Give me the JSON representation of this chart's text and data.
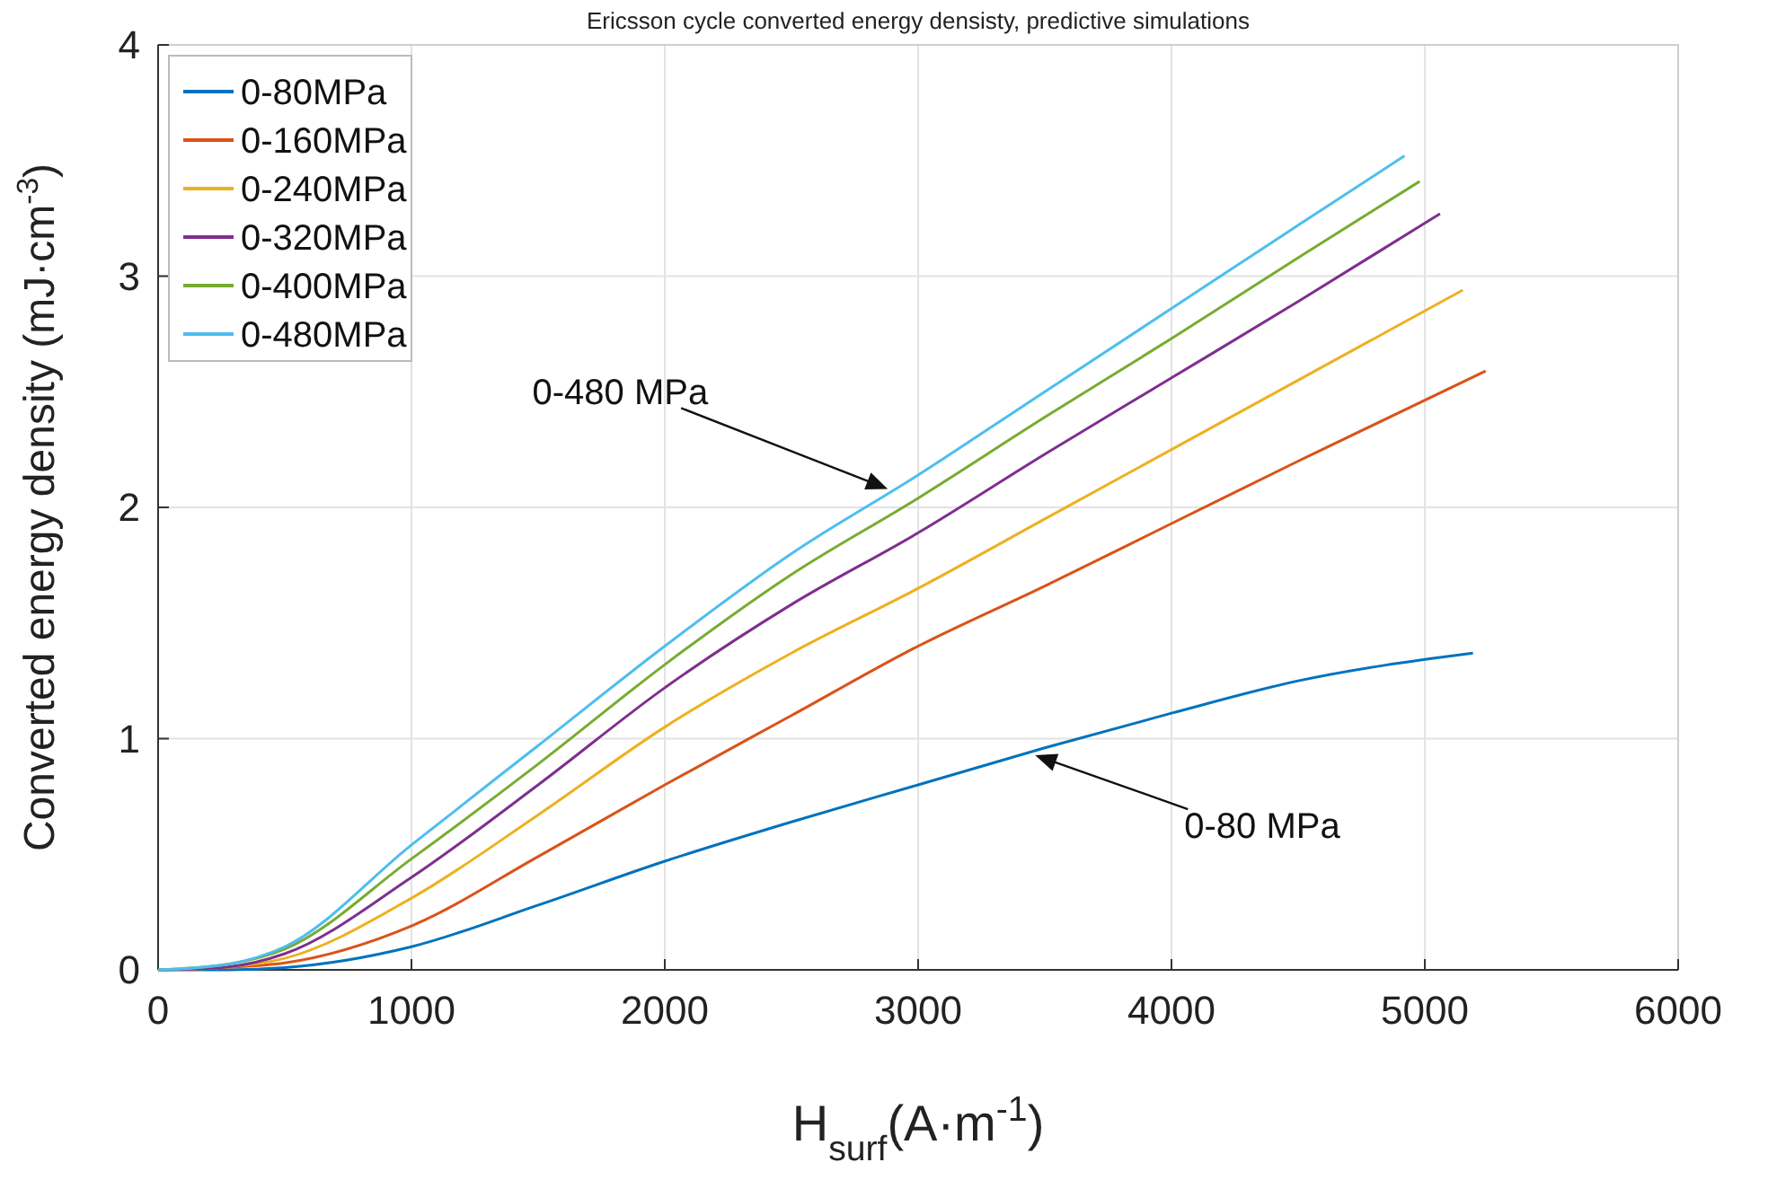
{
  "chart_data": {
    "type": "line",
    "title": "Ericsson cycle converted energy densisty, predictive simulations",
    "xlabel": "H$_{surf}$(A·m$^{-1}$)",
    "ylabel": "Converted energy density (mJ·cm$^{-3}$)",
    "xlim": [
      0,
      6000
    ],
    "ylim": [
      0,
      4
    ],
    "xticks": [
      0,
      1000,
      2000,
      3000,
      4000,
      5000,
      6000
    ],
    "yticks": [
      0,
      1,
      2,
      3,
      4
    ],
    "grid": true,
    "legend": "top left",
    "line_style": "solid",
    "series": [
      {
        "name": "0-80MPa",
        "color": "#0072bd",
        "x": [
          0,
          250,
          500,
          1000,
          1500,
          2000,
          2500,
          3000,
          3500,
          4000,
          4500,
          5190
        ],
        "values": [
          0,
          0,
          0.01,
          0.1,
          0.28,
          0.47,
          0.64,
          0.8,
          0.96,
          1.11,
          1.25,
          1.37
        ]
      },
      {
        "name": "0-160MPa",
        "color": "#d95319",
        "x": [
          0,
          250,
          500,
          1000,
          1500,
          2000,
          2500,
          3000,
          3500,
          4000,
          4500,
          5240
        ],
        "values": [
          0,
          0.01,
          0.03,
          0.19,
          0.49,
          0.8,
          1.1,
          1.4,
          1.66,
          1.93,
          2.2,
          2.59
        ]
      },
      {
        "name": "0-240MPa",
        "color": "#edb120",
        "x": [
          0,
          250,
          500,
          1000,
          1500,
          2000,
          2500,
          3000,
          3500,
          4000,
          4500,
          5150
        ],
        "values": [
          0,
          0.01,
          0.05,
          0.31,
          0.67,
          1.05,
          1.37,
          1.65,
          1.95,
          2.25,
          2.55,
          2.94
        ]
      },
      {
        "name": "0-320MPa",
        "color": "#7e2f8e",
        "x": [
          0,
          250,
          500,
          1000,
          1500,
          2000,
          2500,
          3000,
          3500,
          4000,
          4500,
          5060
        ],
        "values": [
          0,
          0.01,
          0.07,
          0.4,
          0.8,
          1.22,
          1.58,
          1.89,
          2.23,
          2.56,
          2.89,
          3.27
        ]
      },
      {
        "name": "0-400MPa",
        "color": "#77ac30",
        "x": [
          0,
          250,
          500,
          1000,
          1500,
          2000,
          2500,
          3000,
          3500,
          4000,
          4500,
          4980
        ],
        "values": [
          0,
          0.02,
          0.09,
          0.48,
          0.89,
          1.32,
          1.71,
          2.04,
          2.39,
          2.73,
          3.08,
          3.41
        ]
      },
      {
        "name": "0-480MPa",
        "color": "#4dbeee",
        "x": [
          0,
          250,
          500,
          1000,
          1500,
          2000,
          2500,
          3000,
          3500,
          4000,
          4500,
          4920
        ],
        "values": [
          0,
          0.02,
          0.1,
          0.54,
          0.97,
          1.4,
          1.8,
          2.14,
          2.5,
          2.86,
          3.22,
          3.52
        ]
      }
    ],
    "annotations": [
      "0-480 MPa",
      "0-80 MPa"
    ]
  }
}
